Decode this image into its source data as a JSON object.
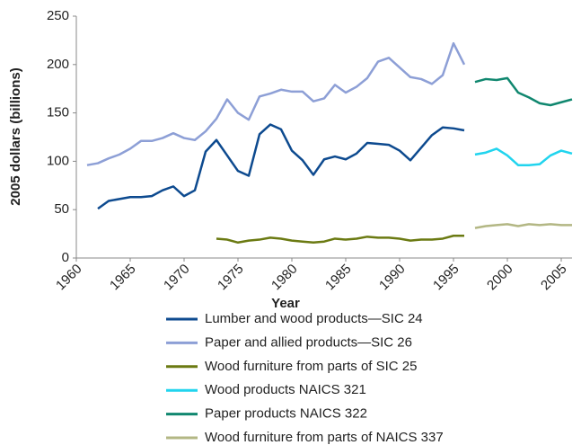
{
  "chart_data": {
    "type": "line",
    "xlabel": "Year",
    "ylabel": "2005 dollars (billions)",
    "xlim": [
      1960,
      2006
    ],
    "ylim": [
      0,
      250
    ],
    "xticks": [
      1960,
      1965,
      1970,
      1975,
      1980,
      1985,
      1990,
      1995,
      2000,
      2005
    ],
    "yticks": [
      0,
      50,
      100,
      150,
      200,
      250
    ],
    "grid": false,
    "series": [
      {
        "name": "Lumber and wood products—SIC 24",
        "color": "#0d4a8f",
        "x": [
          1962,
          1963,
          1964,
          1965,
          1966,
          1967,
          1968,
          1969,
          1970,
          1971,
          1972,
          1973,
          1974,
          1975,
          1976,
          1977,
          1978,
          1979,
          1980,
          1981,
          1982,
          1983,
          1984,
          1985,
          1986,
          1987,
          1988,
          1989,
          1990,
          1991,
          1992,
          1993,
          1994,
          1995,
          1996
        ],
        "values": [
          51,
          59,
          61,
          63,
          63,
          64,
          70,
          74,
          64,
          70,
          110,
          122,
          106,
          90,
          85,
          128,
          138,
          133,
          111,
          101,
          86,
          102,
          105,
          102,
          108,
          119,
          118,
          117,
          111,
          101,
          114,
          127,
          135,
          134,
          132
        ]
      },
      {
        "name": "Paper and allied products—SIC 26",
        "color": "#8d9fd6",
        "x": [
          1961,
          1962,
          1963,
          1964,
          1965,
          1966,
          1967,
          1968,
          1969,
          1970,
          1971,
          1972,
          1973,
          1974,
          1975,
          1976,
          1977,
          1978,
          1979,
          1980,
          1981,
          1982,
          1983,
          1984,
          1985,
          1986,
          1987,
          1988,
          1989,
          1990,
          1991,
          1992,
          1993,
          1994,
          1995,
          1996
        ],
        "values": [
          96,
          98,
          103,
          107,
          113,
          121,
          121,
          124,
          129,
          124,
          122,
          131,
          144,
          164,
          150,
          143,
          167,
          170,
          174,
          172,
          172,
          162,
          165,
          179,
          171,
          177,
          186,
          203,
          207,
          197,
          187,
          185,
          180,
          189,
          222,
          200
        ]
      },
      {
        "name": "Wood furniture from parts of SIC 25",
        "color": "#6b7a12",
        "x": [
          1973,
          1974,
          1975,
          1976,
          1977,
          1978,
          1979,
          1980,
          1981,
          1982,
          1983,
          1984,
          1985,
          1986,
          1987,
          1988,
          1989,
          1990,
          1991,
          1992,
          1993,
          1994,
          1995,
          1996
        ],
        "values": [
          20,
          19,
          16,
          18,
          19,
          21,
          20,
          18,
          17,
          16,
          17,
          20,
          19,
          20,
          22,
          21,
          21,
          20,
          18,
          19,
          19,
          20,
          23,
          23
        ]
      },
      {
        "name": "Wood products NAICS 321",
        "color": "#21d4ee",
        "x": [
          1997,
          1998,
          1999,
          2000,
          2001,
          2002,
          2003,
          2004,
          2005,
          2006
        ],
        "values": [
          107,
          109,
          113,
          106,
          96,
          96,
          97,
          106,
          111,
          108
        ]
      },
      {
        "name": "Paper products NAICS 322",
        "color": "#10876f",
        "x": [
          1997,
          1998,
          1999,
          2000,
          2001,
          2002,
          2003,
          2004,
          2005,
          2006
        ],
        "values": [
          182,
          185,
          184,
          186,
          171,
          166,
          160,
          158,
          161,
          164
        ]
      },
      {
        "name": "Wood furniture from parts of NAICS 337",
        "color": "#b3b784",
        "x": [
          1997,
          1998,
          1999,
          2000,
          2001,
          2002,
          2003,
          2004,
          2005,
          2006
        ],
        "values": [
          31,
          33,
          34,
          35,
          33,
          35,
          34,
          35,
          34,
          34
        ]
      }
    ]
  }
}
